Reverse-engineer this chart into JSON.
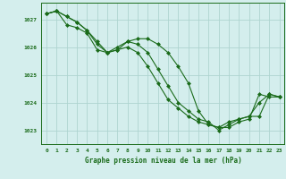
{
  "title": "Graphe pression niveau de la mer (hPa)",
  "background_color": "#d4eeed",
  "grid_color": "#aed4d0",
  "line_color": "#1a6b1a",
  "marker_color": "#1a6b1a",
  "xlim": [
    -0.5,
    23.5
  ],
  "ylim": [
    1022.5,
    1027.6
  ],
  "yticks": [
    1023,
    1024,
    1025,
    1026,
    1027
  ],
  "xticks": [
    0,
    1,
    2,
    3,
    4,
    5,
    6,
    7,
    8,
    9,
    10,
    11,
    12,
    13,
    14,
    15,
    16,
    17,
    18,
    19,
    20,
    21,
    22,
    23
  ],
  "series": [
    [
      1027.2,
      1027.3,
      1027.1,
      1026.9,
      1026.6,
      1026.2,
      1025.8,
      1025.9,
      1026.2,
      1026.3,
      1026.3,
      1026.1,
      1025.8,
      1025.3,
      1024.7,
      1023.7,
      1023.2,
      1023.1,
      1023.1,
      1023.3,
      1023.4,
      1024.3,
      1024.2,
      1024.2
    ],
    [
      1027.2,
      1027.3,
      1027.1,
      1026.9,
      1026.6,
      1026.1,
      1025.8,
      1025.9,
      1026.0,
      1025.8,
      1025.3,
      1024.7,
      1024.1,
      1023.8,
      1023.5,
      1023.3,
      1023.2,
      1023.1,
      1023.3,
      1023.4,
      1023.5,
      1024.0,
      1024.3,
      1024.2
    ],
    [
      1027.2,
      1027.3,
      1026.8,
      1026.7,
      1026.5,
      1025.9,
      1025.8,
      1026.0,
      1026.2,
      1026.1,
      1025.8,
      1025.2,
      1024.6,
      1024.0,
      1023.7,
      1023.4,
      1023.3,
      1023.0,
      1023.2,
      1023.4,
      1023.5,
      1023.5,
      1024.3,
      1024.2
    ]
  ]
}
